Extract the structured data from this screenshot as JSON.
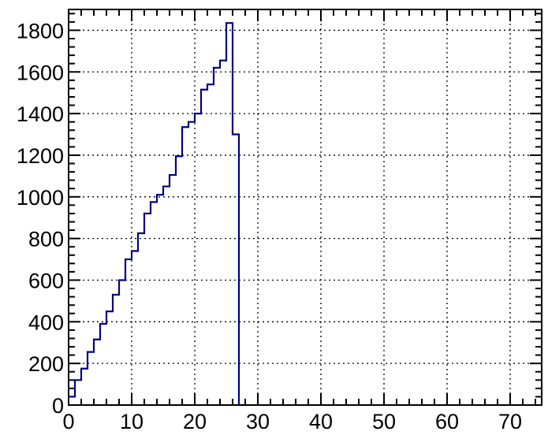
{
  "chart_data": {
    "type": "histogram",
    "title": "",
    "xlabel": "",
    "ylabel": "",
    "xlim": [
      0,
      75
    ],
    "ylim": [
      0,
      1900
    ],
    "grid": true,
    "line_color": "#000080",
    "bin_width": 1,
    "bin_edges_start": 0,
    "values": [
      40,
      120,
      175,
      255,
      315,
      390,
      450,
      530,
      600,
      700,
      740,
      825,
      920,
      975,
      1010,
      1050,
      1105,
      1195,
      1335,
      1360,
      1400,
      1515,
      1540,
      1620,
      1655,
      1835,
      1300,
      0
    ],
    "x_ticks": [
      0,
      10,
      20,
      30,
      40,
      50,
      60,
      70
    ],
    "x_tick_labels": [
      "0",
      "10",
      "20",
      "30",
      "40",
      "50",
      "60",
      "70"
    ],
    "y_ticks": [
      0,
      200,
      400,
      600,
      800,
      1000,
      1200,
      1400,
      1600,
      1800
    ],
    "y_tick_labels": [
      "0",
      "200",
      "400",
      "600",
      "800",
      "1000",
      "1200",
      "1400",
      "1600",
      "1800"
    ]
  }
}
